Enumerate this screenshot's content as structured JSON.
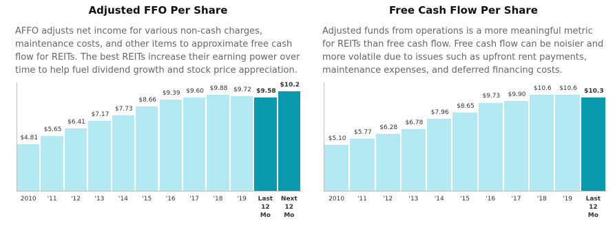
{
  "chart_data": [
    {
      "type": "bar",
      "title": "Adjusted FFO Per Share",
      "subtitle": "AFFO adjusts net income for various non-cash charges, maintenance costs, and other items to approximate free cash flow for REITs. The best REITs increase their earning power over time to help fuel dividend growth and stock price appreciation.",
      "categories": [
        "2010",
        "'11",
        "'12",
        "'13",
        "'14",
        "'15",
        "'16",
        "'17",
        "'18",
        "'19",
        "Last 12 Mo",
        "Next 12 Mo"
      ],
      "values": [
        4.81,
        5.65,
        6.41,
        7.17,
        7.73,
        8.66,
        9.39,
        9.6,
        9.88,
        9.72,
        9.58,
        10.2
      ],
      "value_labels": [
        "$4.81",
        "$5.65",
        "$6.41",
        "$7.17",
        "$7.73",
        "$8.66",
        "$9.39",
        "$9.60",
        "$9.88",
        "$9.72",
        "$9.58",
        "$10.2"
      ],
      "color": "#b2e9f2",
      "colors": [
        "#b2e9f2",
        "#b2e9f2",
        "#b2e9f2",
        "#b2e9f2",
        "#b2e9f2",
        "#b2e9f2",
        "#b2e9f2",
        "#b2e9f2",
        "#b2e9f2",
        "#b2e9f2",
        "#0a9aae",
        "#0a9aae"
      ]
    },
    {
      "type": "bar",
      "title": "Free Cash Flow Per Share",
      "subtitle": "Adjusted funds from operations is a more meaningful metric for REITs than free cash flow. Free cash flow can be noisier and more volatile due to issues such as upfront rent payments, maintenance expenses, and deferred financing costs.",
      "categories": [
        "2010",
        "'11",
        "'12",
        "'13",
        "'14",
        "'15",
        "'16",
        "'17",
        "'18",
        "'19",
        "Last 12 Mo"
      ],
      "values": [
        5.1,
        5.77,
        6.28,
        6.78,
        7.96,
        8.65,
        9.73,
        9.9,
        10.6,
        10.6,
        10.3
      ],
      "value_labels": [
        "$5.10",
        "$5.77",
        "$6.28",
        "$6.78",
        "$7.96",
        "$8.65",
        "$9.73",
        "$9.90",
        "$10.6",
        "$10.6",
        "$10.3"
      ],
      "color": "#b2e9f2",
      "colors": [
        "#b2e9f2",
        "#b2e9f2",
        "#b2e9f2",
        "#b2e9f2",
        "#b2e9f2",
        "#b2e9f2",
        "#b2e9f2",
        "#b2e9f2",
        "#b2e9f2",
        "#b2e9f2",
        "#0a9aae"
      ]
    }
  ]
}
